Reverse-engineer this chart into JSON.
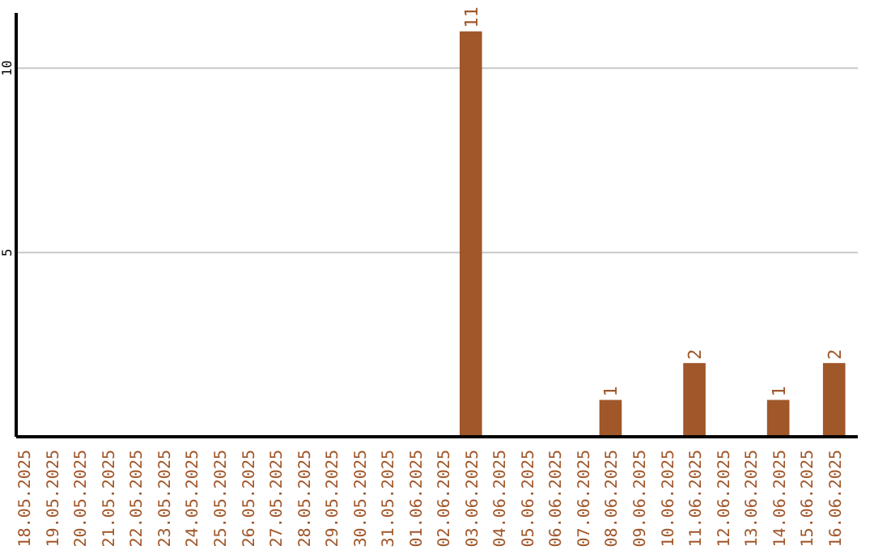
{
  "chart_data": {
    "type": "bar",
    "categories": [
      "18.05.2025",
      "19.05.2025",
      "20.05.2025",
      "21.05.2025",
      "22.05.2025",
      "23.05.2025",
      "24.05.2025",
      "25.05.2025",
      "26.05.2025",
      "27.05.2025",
      "28.05.2025",
      "29.05.2025",
      "30.05.2025",
      "31.05.2025",
      "01.06.2025",
      "02.06.2025",
      "03.06.2025",
      "04.06.2025",
      "05.06.2025",
      "06.06.2025",
      "07.06.2025",
      "08.06.2025",
      "09.06.2025",
      "10.06.2025",
      "11.06.2025",
      "12.06.2025",
      "13.06.2025",
      "14.06.2025",
      "15.06.2025",
      "16.06.2025"
    ],
    "values": [
      0,
      0,
      0,
      0,
      0,
      0,
      0,
      0,
      0,
      0,
      0,
      0,
      0,
      0,
      0,
      0,
      11,
      0,
      0,
      0,
      0,
      1,
      0,
      0,
      2,
      0,
      0,
      1,
      0,
      2
    ],
    "value_labels": [
      null,
      null,
      null,
      null,
      null,
      null,
      null,
      null,
      null,
      null,
      null,
      null,
      null,
      null,
      null,
      null,
      "11",
      null,
      null,
      null,
      null,
      "1",
      null,
      null,
      "2",
      null,
      null,
      "1",
      null,
      "2"
    ],
    "color": "#a0572a",
    "ylim": [
      0,
      11.5
    ],
    "yticks": [
      5,
      10
    ],
    "grid": "y"
  }
}
